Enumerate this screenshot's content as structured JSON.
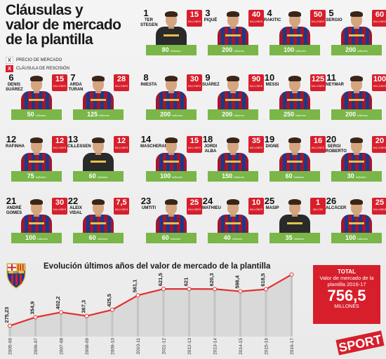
{
  "header": {
    "title_lines": [
      "Cláusulas y",
      "valor de mercado",
      "de la plantilla"
    ]
  },
  "legend": {
    "market_label": "PRECIO DE MERCADO",
    "clause_label": "CLÁUSULA DE RESCISIÓN",
    "market_mark": "X",
    "clause_mark": "X"
  },
  "players": [
    {
      "number": "1",
      "name": "TER STEGEN",
      "clause": "15",
      "clause_unit": "MILLONES",
      "market": "80",
      "market_unit": "millones",
      "gk": true
    },
    {
      "number": "3",
      "name": "PIQUÉ",
      "clause": "40",
      "clause_unit": "MILLONES",
      "market": "200",
      "market_unit": "millones"
    },
    {
      "number": "4",
      "name": "RAKITIC",
      "clause": "50",
      "clause_unit": "MILLONES",
      "market": "100",
      "market_unit": "millones"
    },
    {
      "number": "5",
      "name": "SERGIO",
      "clause": "60",
      "clause_unit": "MILLONES",
      "market": "200",
      "market_unit": "millones"
    },
    {
      "number": "6",
      "name": "DENIS SUÁREZ",
      "clause": "15",
      "clause_unit": "MILLONES",
      "market": "50",
      "market_unit": "millones"
    },
    {
      "number": "7",
      "name": "ARDA TURAN",
      "clause": "28",
      "clause_unit": "MILLONES",
      "market": "125",
      "market_unit": "millones"
    },
    {
      "number": "8",
      "name": "INIESTA",
      "clause": "30",
      "clause_unit": "MILLONES",
      "market": "200",
      "market_unit": "millones"
    },
    {
      "number": "9",
      "name": "SUÁREZ",
      "clause": "90",
      "clause_unit": "MILLONES",
      "market": "200",
      "market_unit": "millones"
    },
    {
      "number": "10",
      "name": "MESSI",
      "clause": "125",
      "clause_unit": "MILLONES",
      "market": "250",
      "market_unit": "millones"
    },
    {
      "number": "11",
      "name": "NEYMAR",
      "clause": "100",
      "clause_unit": "MILLONES",
      "market": "200",
      "market_unit": "millones"
    },
    {
      "number": "12",
      "name": "RAFINHA",
      "clause": "12",
      "clause_unit": "MILLONES",
      "market": "75",
      "market_unit": "millones"
    },
    {
      "number": "13",
      "name": "CILLESSEN",
      "clause": "12",
      "clause_unit": "MILLONES",
      "market": "60",
      "market_unit": "millones",
      "gk": true
    },
    {
      "number": "14",
      "name": "MASCHERANO",
      "clause": "15",
      "clause_unit": "MILLONES",
      "market": "100",
      "market_unit": "millones"
    },
    {
      "number": "18",
      "name": "JORDI ALBA",
      "clause": "35",
      "clause_unit": "MILLONES",
      "market": "150",
      "market_unit": "millones"
    },
    {
      "number": "19",
      "name": "DIGNE",
      "clause": "16",
      "clause_unit": "MILLONES",
      "market": "60",
      "market_unit": "millones"
    },
    {
      "number": "20",
      "name": "SERGI ROBERTO",
      "clause": "20",
      "clause_unit": "MILLONES",
      "market": "30",
      "market_unit": "millones"
    },
    {
      "number": "21",
      "name": "ANDRÉ GOMES",
      "clause": "30",
      "clause_unit": "MILLONES",
      "market": "100",
      "market_unit": "millones"
    },
    {
      "number": "22",
      "name": "ALEIX VIDAL",
      "clause": "7,5",
      "clause_unit": "MILLONES",
      "market": "60",
      "market_unit": "millones"
    },
    {
      "number": "23",
      "name": "UMTITI",
      "clause": "25",
      "clause_unit": "MILLONES",
      "market": "60",
      "market_unit": "millones"
    },
    {
      "number": "24",
      "name": "MATHIEU",
      "clause": "10",
      "clause_unit": "MILLONES",
      "market": "40",
      "market_unit": "millones"
    },
    {
      "number": "25",
      "name": "MASIP",
      "clause": "1",
      "clause_unit": "MILLÓN",
      "market": "35",
      "market_unit": "millones",
      "gk": true
    },
    {
      "number": "26",
      "name": "ALCÁCER",
      "clause": "25",
      "clause_unit": "MILLONES",
      "market": "100",
      "market_unit": "millones"
    }
  ],
  "evolution": {
    "title": "Evolución últimos años del valor de mercado de la plantilla",
    "crest_text": "FCB",
    "total_label": "TOTAL",
    "total_desc": "Valor de mercado de la plantilla 2016-17",
    "total_value": "756,5",
    "total_unit": "MILLONES",
    "brand": "SPORT"
  },
  "chart_data": {
    "type": "area",
    "categories": [
      "2005-06",
      "2006-07",
      "2007-08",
      "2008-09",
      "2009-10",
      "2010-11",
      "2011-12",
      "2012-13",
      "2013-14",
      "2014-15",
      "2015-16",
      "2016-17"
    ],
    "values": [
      275.23,
      354.9,
      402.2,
      367.3,
      425.5,
      561.1,
      621.5,
      621,
      620.3,
      598.4,
      618.5,
      756.5
    ],
    "labels": [
      "275,23",
      "354,9",
      "402,2",
      "367,3",
      "425,5",
      "561,1",
      "621,5",
      "621",
      "620,3",
      "598,4",
      "618,5",
      ""
    ],
    "title": "Evolución últimos años del valor de mercado de la plantilla",
    "colors": {
      "fill": "#d9d9d9",
      "line": "#e0302f",
      "dot": "#ffffff"
    }
  },
  "colors": {
    "clause_red": "#d71f2c",
    "market_green": "#7ab648"
  }
}
